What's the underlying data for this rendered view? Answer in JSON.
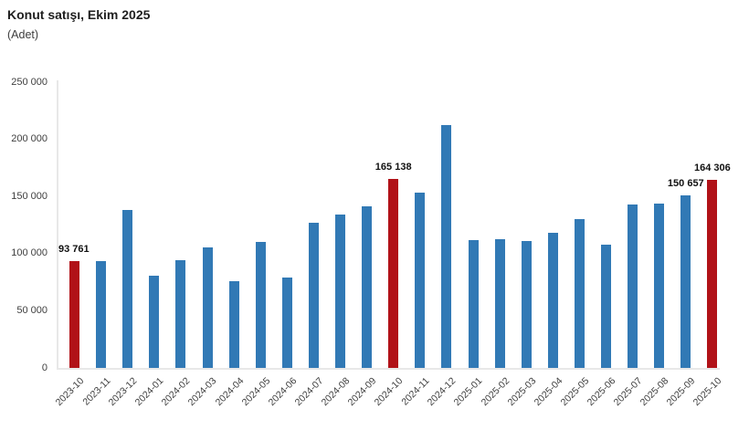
{
  "header": {
    "title": "Konut satışı, Ekim 2025",
    "subtitle": "(Adet)"
  },
  "colors": {
    "bar_blue": "#3179b5",
    "bar_red": "#b11218",
    "axis_line": "#e8e8e8",
    "tick_text": "#3d3d3d",
    "data_label_text": "#111111"
  },
  "chart_data": {
    "type": "bar",
    "title": "Konut satışı, Ekim 2025",
    "unit": "Adet",
    "xlabel": "",
    "ylabel": "",
    "ylim": [
      0,
      250000
    ],
    "grid": false,
    "legend": "none",
    "yticks": [
      {
        "value": 0,
        "label": "0"
      },
      {
        "value": 50000,
        "label": "50 000"
      },
      {
        "value": 100000,
        "label": "100 000"
      },
      {
        "value": 150000,
        "label": "150 000"
      },
      {
        "value": 200000,
        "label": "200 000"
      },
      {
        "value": 250000,
        "label": "250 000"
      }
    ],
    "categories": [
      "2023-10",
      "2023-11",
      "2023-12",
      "2024-01",
      "2024-02",
      "2024-03",
      "2024-04",
      "2024-05",
      "2024-06",
      "2024-07",
      "2024-08",
      "2024-09",
      "2024-10",
      "2024-11",
      "2024-12",
      "2025-01",
      "2025-02",
      "2025-03",
      "2025-04",
      "2025-05",
      "2025-06",
      "2025-07",
      "2025-08",
      "2025-09",
      "2025-10"
    ],
    "values": [
      93761,
      93800,
      138500,
      80300,
      93900,
      105500,
      75500,
      110600,
      79300,
      127100,
      134200,
      141000,
      165138,
      153000,
      212700,
      112200,
      112900,
      110800,
      118300,
      129900,
      107700,
      142900,
      143400,
      150657,
      164306
    ],
    "highlight_indices": [
      0,
      12,
      24
    ],
    "data_labels": [
      {
        "index": 0,
        "text": "93 761"
      },
      {
        "index": 12,
        "text": "165 138"
      },
      {
        "index": 23,
        "text": "150 657"
      },
      {
        "index": 24,
        "text": "164 306"
      }
    ]
  }
}
